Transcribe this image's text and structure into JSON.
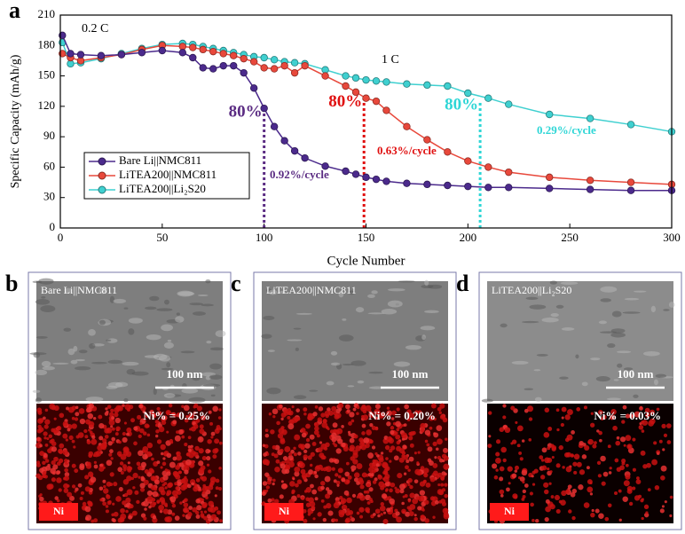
{
  "chart_data": {
    "type": "line",
    "panel_label": "a",
    "x_label": "Cycle Number",
    "y_label": "Specific Capacity (mAh/g)",
    "x": [
      1,
      5,
      10,
      20,
      30,
      40,
      50,
      60,
      65,
      70,
      75,
      80,
      85,
      90,
      95,
      100,
      105,
      110,
      115,
      120,
      130,
      140,
      145,
      150,
      155,
      160,
      170,
      180,
      190,
      200,
      210,
      220,
      240,
      260,
      280,
      300
    ],
    "series": [
      {
        "name": "Bare Li||NMC811",
        "color": "#4b2a8c",
        "values": [
          190,
          172,
          171,
          170,
          171,
          173,
          175,
          173,
          168,
          158,
          157,
          160,
          160,
          153,
          138,
          118,
          100,
          86,
          76,
          69,
          61,
          56,
          53,
          50,
          48,
          46,
          44,
          43,
          42,
          41,
          40,
          40,
          39,
          38,
          37,
          37
        ]
      },
      {
        "name": "LiTEA200||NMC811",
        "color": "#e8483b",
        "values": [
          172,
          168,
          165,
          168,
          171,
          176,
          180,
          179,
          178,
          176,
          174,
          172,
          170,
          167,
          164,
          158,
          157,
          160,
          153,
          160,
          150,
          140,
          134,
          128,
          125,
          116,
          100,
          87,
          75,
          66,
          60,
          55,
          50,
          47,
          45,
          43
        ]
      },
      {
        "name": "LiTEA200||Li₂S20",
        "color": "#3fd0d0",
        "values": [
          183,
          162,
          163,
          167,
          172,
          177,
          181,
          182,
          181,
          179,
          177,
          175,
          173,
          171,
          169,
          168,
          166,
          164,
          163,
          162,
          156,
          150,
          148,
          146,
          145,
          144,
          142,
          141,
          140,
          133,
          128,
          122,
          112,
          108,
          102,
          95
        ]
      }
    ],
    "xlim": [
      0,
      300
    ],
    "ylim": [
      0,
      210
    ],
    "xticks": [
      0,
      50,
      100,
      150,
      200,
      250,
      300
    ],
    "yticks": [
      0,
      30,
      60,
      90,
      120,
      150,
      180,
      210
    ],
    "rate_labels": [
      "0.2 C",
      "1 C"
    ],
    "retention_markers": [
      {
        "label": "80%",
        "x": 100,
        "y": 118,
        "color": "#5b2c83"
      },
      {
        "label": "80%",
        "x": 149,
        "y": 128,
        "color": "#e01010"
      },
      {
        "label": "80%",
        "x": 206,
        "y": 125,
        "color": "#2ed6d6"
      }
    ],
    "decay_labels": [
      {
        "text": "0.92%/cycle",
        "color": "#5b2c83"
      },
      {
        "text": "0.63%/cycle",
        "color": "#e01010"
      },
      {
        "text": "0.29%/cycle",
        "color": "#2ed6d6"
      }
    ],
    "legend_position": "lower left"
  },
  "panels": [
    {
      "label": "b",
      "title": "Bare Li||NMC811",
      "scale_bar": "100 nm",
      "element": "Ni",
      "content": "Ni% = 0.25%"
    },
    {
      "label": "c",
      "title": "LiTEA200||NMC811",
      "scale_bar": "100 nm",
      "element": "Ni",
      "content": "Ni% = 0.20%"
    },
    {
      "label": "d",
      "title": "LiTEA200||Li₂S20",
      "scale_bar": "100 nm",
      "element": "Ni",
      "content": "Ni% = 0.03%"
    }
  ]
}
